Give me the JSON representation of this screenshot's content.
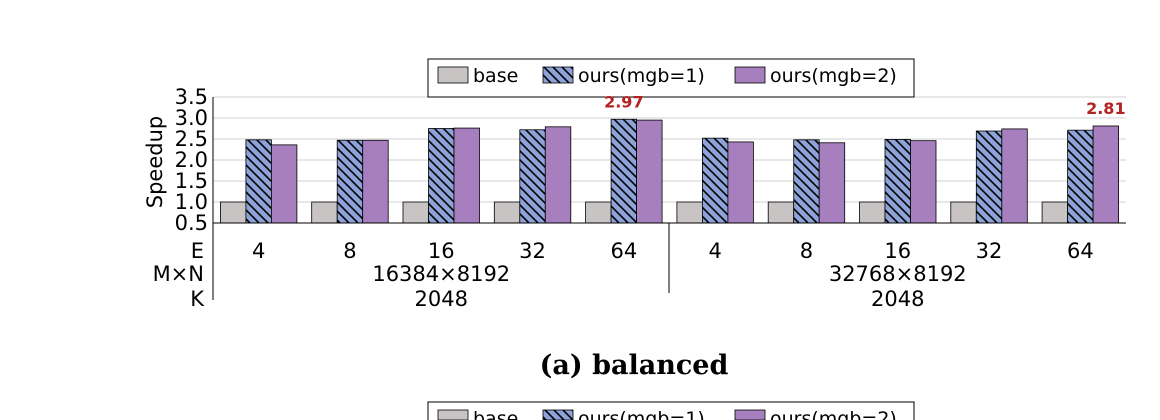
{
  "caption": "(a) balanced",
  "colors": {
    "base": "#c8c4c4",
    "ours1": "#8ca2d8",
    "ours2": "#a87fbe",
    "annotation": "#b22222"
  },
  "chart_data": {
    "type": "bar",
    "ylabel": "Speedup",
    "ylim": [
      0.5,
      3.5
    ],
    "yticks": [
      "0.5",
      "1.0",
      "1.5",
      "2.0",
      "2.5",
      "3.0",
      "3.5"
    ],
    "grid": true,
    "legend_position": "top-center",
    "row_labels": [
      "E",
      "M×N",
      "K"
    ],
    "groups": [
      {
        "mn": "16384×8192",
        "k": "2048",
        "categories": [
          "4",
          "8",
          "16",
          "32",
          "64"
        ]
      },
      {
        "mn": "32768×8192",
        "k": "2048",
        "categories": [
          "4",
          "8",
          "16",
          "32",
          "64"
        ]
      }
    ],
    "series": [
      {
        "name": "base",
        "pattern": "solid",
        "values": [
          1.0,
          1.0,
          1.0,
          1.0,
          1.0,
          1.0,
          1.0,
          1.0,
          1.0,
          1.0
        ]
      },
      {
        "name": "ours(mgb=1)",
        "pattern": "hatched",
        "values": [
          2.48,
          2.47,
          2.75,
          2.72,
          2.97,
          2.52,
          2.48,
          2.49,
          2.69,
          2.71
        ]
      },
      {
        "name": "ours(mgb=2)",
        "pattern": "solid",
        "values": [
          2.36,
          2.47,
          2.76,
          2.79,
          2.95,
          2.43,
          2.41,
          2.46,
          2.74,
          2.81
        ]
      }
    ],
    "annotations": [
      {
        "index": 4,
        "series": 1,
        "text": "2.97"
      },
      {
        "index": 9,
        "series": 2,
        "text": "2.81"
      }
    ]
  },
  "second_legend": [
    "base",
    "ours(mgb=1)",
    "ours(mgb=2)"
  ]
}
